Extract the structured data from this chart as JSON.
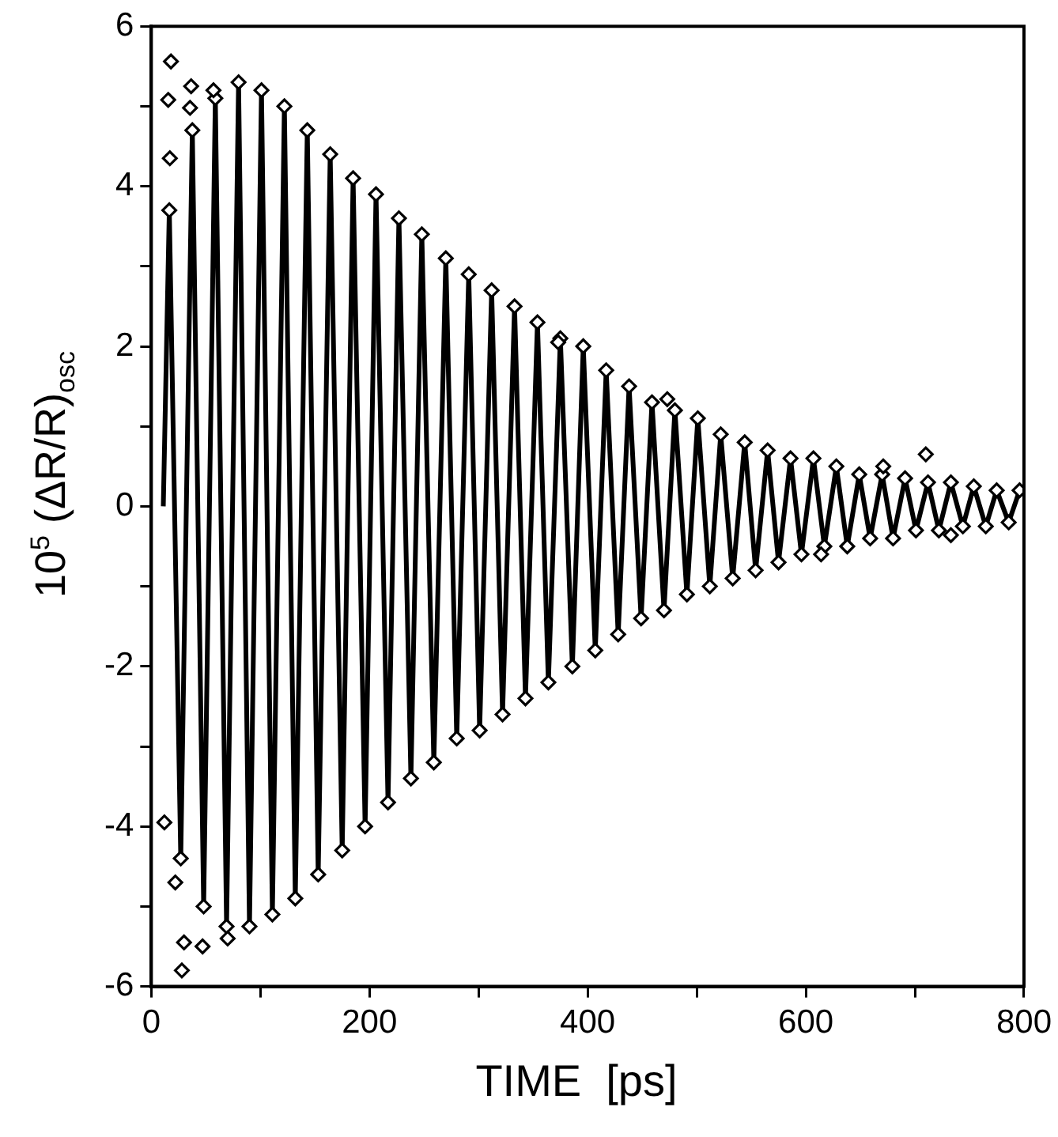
{
  "chart_data": {
    "type": "scatter",
    "xlabel": "TIME  [ps]",
    "ylabel": "10$^{5}$ (ΔR/R)$_{osc}$",
    "xlim": [
      0,
      800
    ],
    "xticks": [
      0,
      {
        "value": 100,
        "label": null
      },
      200,
      {
        "value": 300,
        "label": null
      },
      400,
      {
        "value": 500,
        "label": null
      },
      600,
      {
        "value": 700,
        "label": null
      },
      800
    ],
    "ylim": [
      -6,
      6
    ],
    "yticks": [
      -6,
      {
        "value": -5,
        "label": null
      },
      -4,
      {
        "value": -3,
        "label": null
      },
      -2,
      {
        "value": -1,
        "label": null
      },
      0,
      {
        "value": 1,
        "label": null
      },
      2,
      {
        "value": 3,
        "label": null
      },
      4,
      {
        "value": 5,
        "label": null
      },
      6
    ],
    "grid": false,
    "series": [
      {
        "type": "line",
        "color": "#000000",
        "line_style": "solid",
        "marker": "none",
        "x": [
          11,
          16.5,
          27,
          37.6,
          48,
          58.7,
          69,
          80,
          90,
          101,
          111,
          122,
          132,
          143,
          153,
          164,
          175,
          185,
          196,
          206,
          217,
          227,
          238,
          248,
          259,
          270,
          280,
          291,
          301,
          312,
          322,
          333,
          343,
          354,
          364,
          375,
          386,
          396,
          407,
          417,
          428,
          438,
          449,
          459,
          470,
          480,
          491,
          501,
          512,
          522,
          533,
          544,
          554,
          565,
          575,
          586,
          596,
          607,
          617,
          628,
          638,
          649,
          659,
          670,
          680,
          691,
          701,
          712,
          722,
          733,
          744,
          754,
          765,
          775,
          786,
          796
        ],
        "values": [
          0,
          3.7,
          -4.4,
          4.7,
          -5.0,
          5.1,
          -5.25,
          5.3,
          -5.25,
          5.2,
          -5.1,
          5.0,
          -4.9,
          4.7,
          -4.6,
          4.4,
          -4.3,
          4.1,
          -4.0,
          3.9,
          -3.7,
          3.6,
          -3.4,
          3.4,
          -3.2,
          3.1,
          -2.9,
          2.9,
          -2.8,
          2.7,
          -2.6,
          2.5,
          -2.4,
          2.3,
          -2.2,
          2.1,
          -2.0,
          2.0,
          -1.8,
          1.7,
          -1.6,
          1.5,
          -1.4,
          1.3,
          -1.3,
          1.2,
          -1.1,
          1.1,
          -1.0,
          0.9,
          -0.9,
          0.8,
          -0.8,
          0.7,
          -0.7,
          0.6,
          -0.6,
          0.6,
          -0.5,
          0.5,
          -0.5,
          0.4,
          -0.4,
          0.4,
          -0.4,
          0.35,
          -0.3,
          0.3,
          -0.3,
          0.3,
          -0.25,
          0.25,
          -0.25,
          0.2,
          -0.2,
          0.2
        ]
      },
      {
        "type": "scatter",
        "color": "#000000",
        "marker": "diamond",
        "x": [
          16.5,
          27,
          37.6,
          48,
          58.7,
          69,
          80,
          90,
          101,
          111,
          122,
          132,
          143,
          153,
          164,
          175,
          185,
          196,
          206,
          217,
          227,
          238,
          248,
          259,
          270,
          280,
          291,
          301,
          312,
          322,
          333,
          343,
          354,
          364,
          375,
          386,
          396,
          407,
          417,
          428,
          438,
          449,
          459,
          470,
          480,
          491,
          501,
          512,
          522,
          533,
          544,
          554,
          565,
          575,
          586,
          596,
          607,
          617,
          628,
          638,
          649,
          659,
          670,
          680,
          691,
          701,
          712,
          722,
          733,
          744,
          754,
          765,
          775,
          786,
          796,
          12,
          15.5,
          17,
          18,
          22,
          28,
          30,
          35.5,
          36.5,
          47,
          57,
          70,
          373,
          473,
          614,
          671,
          710,
          733
        ],
        "values": [
          3.7,
          -4.4,
          4.7,
          -5.0,
          5.1,
          -5.25,
          5.3,
          -5.25,
          5.2,
          -5.1,
          5.0,
          -4.9,
          4.7,
          -4.6,
          4.4,
          -4.3,
          4.1,
          -4.0,
          3.9,
          -3.7,
          3.6,
          -3.4,
          3.4,
          -3.2,
          3.1,
          -2.9,
          2.9,
          -2.8,
          2.7,
          -2.6,
          2.5,
          -2.4,
          2.3,
          -2.2,
          2.1,
          -2.0,
          2.0,
          -1.8,
          1.7,
          -1.6,
          1.5,
          -1.4,
          1.3,
          -1.3,
          1.2,
          -1.1,
          1.1,
          -1.0,
          0.9,
          -0.9,
          0.8,
          -0.8,
          0.7,
          -0.7,
          0.6,
          -0.6,
          0.6,
          -0.5,
          0.5,
          -0.5,
          0.4,
          -0.4,
          0.4,
          -0.4,
          0.35,
          -0.3,
          0.3,
          -0.3,
          0.3,
          -0.25,
          0.25,
          -0.25,
          0.2,
          -0.2,
          0.2,
          -3.95,
          5.08,
          4.35,
          5.56,
          -4.7,
          -5.8,
          -5.45,
          4.98,
          5.25,
          -5.5,
          5.2,
          -5.4,
          2.05,
          1.34,
          -0.6,
          0.5,
          0.65,
          -0.36
        ]
      }
    ]
  }
}
